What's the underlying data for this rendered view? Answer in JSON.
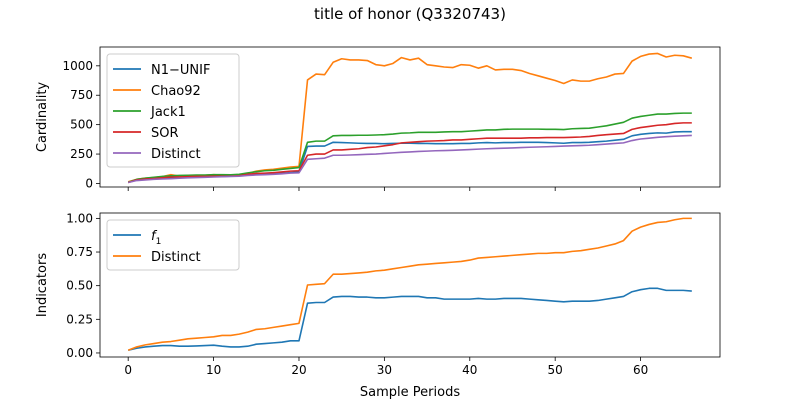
{
  "chart_data": {
    "suptitle": "title of honor (Q3320743)",
    "xlabel": "Sample Periods",
    "x_ticks": [
      0,
      10,
      20,
      30,
      40,
      50,
      60
    ],
    "x_tick_labels": [
      "0",
      "10",
      "20",
      "30",
      "40",
      "50",
      "60"
    ],
    "xlim": [
      -3.3,
      69.3
    ],
    "panels": [
      {
        "type": "line",
        "ylabel": "Cardinality",
        "ylim": [
          -30,
          1160
        ],
        "y_ticks": [
          0,
          250,
          500,
          750,
          1000
        ],
        "y_tick_labels": [
          "0",
          "250",
          "500",
          "750",
          "1000"
        ],
        "legend_position": "top-left",
        "series": [
          {
            "name": "N1−UNIF",
            "color": "#1f77b4",
            "x": [
              0,
              1,
              2,
              3,
              4,
              5,
              6,
              7,
              8,
              9,
              10,
              11,
              12,
              13,
              14,
              15,
              16,
              17,
              18,
              19,
              20,
              21,
              22,
              23,
              24,
              25,
              26,
              27,
              28,
              29,
              30,
              31,
              32,
              33,
              34,
              35,
              36,
              37,
              38,
              39,
              40,
              41,
              42,
              43,
              44,
              45,
              46,
              47,
              48,
              49,
              50,
              51,
              52,
              53,
              54,
              55,
              56,
              57,
              58,
              59,
              60,
              61,
              62,
              63,
              64,
              65,
              66
            ],
            "values": [
              10,
              30,
              38,
              42,
              45,
              50,
              52,
              55,
              57,
              58,
              60,
              60,
              62,
              65,
              72,
              78,
              80,
              85,
              88,
              92,
              100,
              315,
              318,
              318,
              350,
              348,
              345,
              342,
              340,
              340,
              338,
              340,
              342,
              342,
              340,
              340,
              338,
              338,
              338,
              340,
              340,
              345,
              348,
              345,
              348,
              348,
              350,
              350,
              350,
              348,
              345,
              342,
              348,
              348,
              350,
              355,
              360,
              368,
              375,
              405,
              418,
              425,
              430,
              428,
              438,
              440,
              440
            ]
          },
          {
            "name": "Chao92",
            "color": "#ff7f0e",
            "x": [
              0,
              1,
              2,
              3,
              4,
              5,
              6,
              7,
              8,
              9,
              10,
              11,
              12,
              13,
              14,
              15,
              16,
              17,
              18,
              19,
              20,
              21,
              22,
              23,
              24,
              25,
              26,
              27,
              28,
              29,
              30,
              31,
              32,
              33,
              34,
              35,
              36,
              37,
              38,
              39,
              40,
              41,
              42,
              43,
              44,
              45,
              46,
              47,
              48,
              49,
              50,
              51,
              52,
              53,
              54,
              55,
              56,
              57,
              58,
              59,
              60,
              61,
              62,
              63,
              64,
              65,
              66
            ],
            "values": [
              15,
              35,
              45,
              50,
              58,
              75,
              62,
              70,
              68,
              70,
              75,
              72,
              70,
              75,
              85,
              105,
              115,
              120,
              130,
              140,
              145,
              880,
              930,
              925,
              1030,
              1060,
              1050,
              1050,
              1045,
              1010,
              1000,
              1020,
              1070,
              1050,
              1065,
              1010,
              1000,
              990,
              985,
              1010,
              1005,
              980,
              1000,
              965,
              970,
              970,
              960,
              935,
              915,
              895,
              875,
              850,
              880,
              870,
              870,
              890,
              905,
              930,
              935,
              1040,
              1080,
              1100,
              1105,
              1075,
              1090,
              1085,
              1065
            ]
          },
          {
            "name": "Jack1",
            "color": "#2ca02c",
            "x": [
              0,
              1,
              2,
              3,
              4,
              5,
              6,
              7,
              8,
              9,
              10,
              11,
              12,
              13,
              14,
              15,
              16,
              17,
              18,
              19,
              20,
              21,
              22,
              23,
              24,
              25,
              26,
              27,
              28,
              29,
              30,
              31,
              32,
              33,
              34,
              35,
              36,
              37,
              38,
              39,
              40,
              41,
              42,
              43,
              44,
              45,
              46,
              47,
              48,
              49,
              50,
              51,
              52,
              53,
              54,
              55,
              56,
              57,
              58,
              59,
              60,
              61,
              62,
              63,
              64,
              65,
              66
            ],
            "values": [
              10,
              35,
              45,
              52,
              60,
              65,
              68,
              70,
              72,
              72,
              75,
              75,
              74,
              78,
              90,
              100,
              108,
              112,
              120,
              128,
              135,
              350,
              360,
              360,
              405,
              408,
              408,
              410,
              410,
              412,
              415,
              420,
              428,
              430,
              435,
              435,
              435,
              438,
              440,
              440,
              445,
              450,
              455,
              455,
              460,
              462,
              462,
              462,
              462,
              460,
              460,
              458,
              465,
              468,
              470,
              480,
              490,
              505,
              520,
              555,
              570,
              580,
              590,
              590,
              595,
              598,
              598
            ]
          },
          {
            "name": "SOR",
            "color": "#d62728",
            "x": [
              0,
              1,
              2,
              3,
              4,
              5,
              6,
              7,
              8,
              9,
              10,
              11,
              12,
              13,
              14,
              15,
              16,
              17,
              18,
              19,
              20,
              21,
              22,
              23,
              24,
              25,
              26,
              27,
              28,
              29,
              30,
              31,
              32,
              33,
              34,
              35,
              36,
              37,
              38,
              39,
              40,
              41,
              42,
              43,
              44,
              45,
              46,
              47,
              48,
              49,
              50,
              51,
              52,
              53,
              54,
              55,
              56,
              57,
              58,
              59,
              60,
              61,
              62,
              63,
              64,
              65,
              66
            ],
            "values": [
              8,
              30,
              38,
              42,
              48,
              55,
              55,
              58,
              60,
              60,
              62,
              62,
              62,
              65,
              78,
              85,
              88,
              92,
              98,
              105,
              108,
              240,
              250,
              250,
              285,
              285,
              290,
              295,
              305,
              310,
              320,
              330,
              345,
              350,
              355,
              360,
              362,
              365,
              370,
              370,
              375,
              380,
              385,
              385,
              385,
              385,
              385,
              388,
              388,
              390,
              390,
              390,
              392,
              395,
              400,
              408,
              415,
              420,
              425,
              460,
              475,
              485,
              495,
              500,
              510,
              515,
              515
            ]
          },
          {
            "name": "Distinct",
            "color": "#9467bd",
            "x": [
              0,
              1,
              2,
              3,
              4,
              5,
              6,
              7,
              8,
              9,
              10,
              11,
              12,
              13,
              14,
              15,
              16,
              17,
              18,
              19,
              20,
              21,
              22,
              23,
              24,
              25,
              26,
              27,
              28,
              29,
              30,
              31,
              32,
              33,
              34,
              35,
              36,
              37,
              38,
              39,
              40,
              41,
              42,
              43,
              44,
              45,
              46,
              47,
              48,
              49,
              50,
              51,
              52,
              53,
              54,
              55,
              56,
              57,
              58,
              59,
              60,
              61,
              62,
              63,
              64,
              65,
              66
            ],
            "values": [
              8,
              25,
              30,
              35,
              38,
              40,
              45,
              48,
              50,
              52,
              55,
              58,
              60,
              62,
              68,
              72,
              75,
              78,
              82,
              88,
              90,
              205,
              210,
              215,
              240,
              240,
              242,
              245,
              248,
              250,
              255,
              260,
              265,
              268,
              272,
              275,
              278,
              280,
              282,
              285,
              288,
              292,
              295,
              298,
              300,
              302,
              305,
              308,
              310,
              312,
              315,
              318,
              320,
              322,
              325,
              330,
              335,
              340,
              345,
              365,
              378,
              385,
              392,
              398,
              402,
              405,
              408
            ]
          }
        ]
      },
      {
        "type": "line",
        "ylabel": "Indicators",
        "ylim": [
          -0.03,
          1.04
        ],
        "y_ticks": [
          0.0,
          0.25,
          0.5,
          0.75,
          1.0
        ],
        "y_tick_labels": [
          "0.00",
          "0.25",
          "0.50",
          "0.75",
          "1.00"
        ],
        "legend_position": "top-left",
        "series": [
          {
            "name": "f",
            "name_subscript": "1",
            "color": "#1f77b4",
            "x": [
              0,
              1,
              2,
              3,
              4,
              5,
              6,
              7,
              8,
              9,
              10,
              11,
              12,
              13,
              14,
              15,
              16,
              17,
              18,
              19,
              20,
              21,
              22,
              23,
              24,
              25,
              26,
              27,
              28,
              29,
              30,
              31,
              32,
              33,
              34,
              35,
              36,
              37,
              38,
              39,
              40,
              41,
              42,
              43,
              44,
              45,
              46,
              47,
              48,
              49,
              50,
              51,
              52,
              53,
              54,
              55,
              56,
              57,
              58,
              59,
              60,
              61,
              62,
              63,
              64,
              65,
              66
            ],
            "values": [
              0.02,
              0.035,
              0.045,
              0.05,
              0.055,
              0.055,
              0.05,
              0.05,
              0.052,
              0.055,
              0.058,
              0.05,
              0.045,
              0.045,
              0.05,
              0.065,
              0.07,
              0.075,
              0.08,
              0.09,
              0.09,
              0.37,
              0.375,
              0.375,
              0.415,
              0.42,
              0.42,
              0.415,
              0.415,
              0.41,
              0.41,
              0.415,
              0.42,
              0.42,
              0.42,
              0.41,
              0.41,
              0.4,
              0.4,
              0.4,
              0.4,
              0.405,
              0.4,
              0.4,
              0.405,
              0.405,
              0.405,
              0.4,
              0.395,
              0.39,
              0.385,
              0.38,
              0.385,
              0.385,
              0.385,
              0.39,
              0.4,
              0.41,
              0.42,
              0.455,
              0.47,
              0.48,
              0.48,
              0.465,
              0.465,
              0.465,
              0.46
            ]
          },
          {
            "name": "Distinct",
            "color": "#ff7f0e",
            "x": [
              0,
              1,
              2,
              3,
              4,
              5,
              6,
              7,
              8,
              9,
              10,
              11,
              12,
              13,
              14,
              15,
              16,
              17,
              18,
              19,
              20,
              21,
              22,
              23,
              24,
              25,
              26,
              27,
              28,
              29,
              30,
              31,
              32,
              33,
              34,
              35,
              36,
              37,
              38,
              39,
              40,
              41,
              42,
              43,
              44,
              45,
              46,
              47,
              48,
              49,
              50,
              51,
              52,
              53,
              54,
              55,
              56,
              57,
              58,
              59,
              60,
              61,
              62,
              63,
              64,
              65,
              66
            ],
            "values": [
              0.02,
              0.045,
              0.06,
              0.07,
              0.08,
              0.085,
              0.095,
              0.105,
              0.11,
              0.115,
              0.12,
              0.13,
              0.13,
              0.14,
              0.155,
              0.175,
              0.18,
              0.19,
              0.2,
              0.21,
              0.22,
              0.505,
              0.51,
              0.515,
              0.585,
              0.585,
              0.59,
              0.595,
              0.6,
              0.61,
              0.615,
              0.625,
              0.635,
              0.645,
              0.655,
              0.66,
              0.665,
              0.67,
              0.675,
              0.68,
              0.69,
              0.705,
              0.71,
              0.715,
              0.72,
              0.725,
              0.73,
              0.735,
              0.74,
              0.74,
              0.745,
              0.745,
              0.755,
              0.76,
              0.77,
              0.78,
              0.795,
              0.81,
              0.835,
              0.905,
              0.935,
              0.955,
              0.97,
              0.975,
              0.99,
              1.0,
              1.0
            ]
          }
        ]
      }
    ]
  }
}
